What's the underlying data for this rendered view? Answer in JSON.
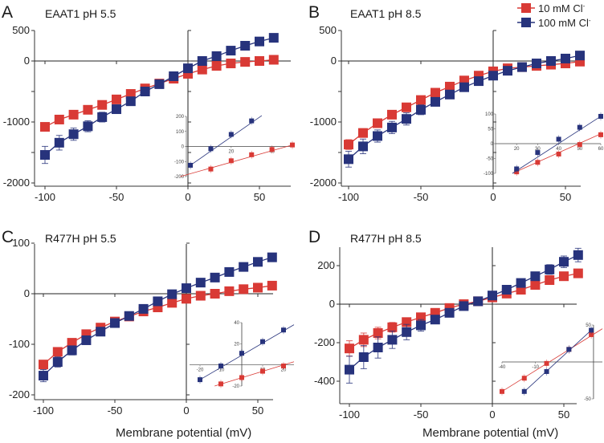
{
  "figure": {
    "xlabel": "Membrane potential (mV)",
    "legend": {
      "placement": "top-right",
      "entries": [
        {
          "label": "10 mM  Cl",
          "superscript": "-",
          "color": "#d93a35"
        },
        {
          "label": "100 mM  Cl",
          "superscript": "-",
          "color": "#27337c"
        }
      ]
    }
  },
  "chart_data": [
    {
      "type": "line",
      "panel": "A",
      "title": "EAAT1 pH 5.5",
      "xlabel": "",
      "ylabel": "",
      "xlim": [
        -105,
        60
      ],
      "ylim": [
        -2000,
        500
      ],
      "xticks": [
        -100,
        -50,
        0,
        50
      ],
      "yticks": [
        500,
        0,
        -500,
        -1000,
        -1500,
        -2000
      ],
      "ytick_labels": [
        "500",
        "0",
        "",
        "-1000",
        "",
        "-2000"
      ],
      "x": [
        -100,
        -90,
        -80,
        -70,
        -60,
        -50,
        -40,
        -30,
        -20,
        -10,
        0,
        10,
        20,
        30,
        40,
        50,
        60
      ],
      "series": [
        {
          "name": "10 mM Cl-",
          "color": "#d93a35",
          "values": [
            -1080,
            -960,
            -880,
            -800,
            -720,
            -630,
            -540,
            -450,
            -370,
            -290,
            -210,
            -140,
            -80,
            -40,
            -15,
            0,
            20
          ],
          "errors": [
            40,
            30,
            25,
            25,
            20,
            20,
            20,
            15,
            15,
            15,
            15,
            10,
            10,
            10,
            10,
            10,
            10
          ]
        },
        {
          "name": "100 mM Cl-",
          "color": "#27337c",
          "values": [
            -1540,
            -1340,
            -1200,
            -1070,
            -920,
            -790,
            -660,
            -500,
            -380,
            -250,
            -120,
            0,
            80,
            170,
            250,
            320,
            380
          ],
          "errors": [
            140,
            120,
            100,
            90,
            80,
            60,
            40,
            30,
            20,
            20,
            20,
            20,
            20,
            20,
            20,
            20,
            20
          ]
        }
      ],
      "inset": {
        "xlim": [
          -2,
          50
        ],
        "ylim": [
          -200,
          200
        ],
        "xticks": [
          20,
          40
        ],
        "yticks": [
          200,
          100,
          0,
          -100,
          -200
        ],
        "series": [
          {
            "name": "10 mM Cl-",
            "color": "#d93a35",
            "x": [
              10,
              20,
              30,
              40,
              50
            ],
            "values": [
              -150,
              -95,
              -55,
              -20,
              10
            ],
            "fit": [
              [
                -5,
                -200
              ],
              [
                50,
                10
              ]
            ]
          },
          {
            "name": "100 mM Cl-",
            "color": "#27337c",
            "x": [
              0,
              10,
              20,
              30
            ],
            "values": [
              -125,
              -15,
              80,
              170
            ],
            "fit": [
              [
                0,
                -125
              ],
              [
                35,
                205
              ]
            ]
          }
        ]
      }
    },
    {
      "type": "line",
      "panel": "B",
      "title": "EAAT1 pH 8.5",
      "xlabel": "",
      "ylabel": "",
      "xlim": [
        -105,
        60
      ],
      "ylim": [
        -2000,
        500
      ],
      "xticks": [
        -100,
        -50,
        0,
        50
      ],
      "yticks": [
        500,
        0,
        -500,
        -1000,
        -1500,
        -2000
      ],
      "ytick_labels": [
        "500",
        "0",
        "",
        "-1000",
        "",
        "-2000"
      ],
      "x": [
        -100,
        -90,
        -80,
        -70,
        -60,
        -50,
        -40,
        -30,
        -20,
        -10,
        0,
        10,
        20,
        30,
        40,
        50,
        60
      ],
      "series": [
        {
          "name": "10 mM Cl-",
          "color": "#d93a35",
          "values": [
            -1370,
            -1180,
            -1020,
            -880,
            -760,
            -640,
            -520,
            -420,
            -320,
            -240,
            -170,
            -120,
            -100,
            -80,
            -60,
            -40,
            -10
          ],
          "errors": [
            80,
            70,
            60,
            50,
            40,
            30,
            25,
            20,
            20,
            15,
            15,
            15,
            15,
            15,
            15,
            15,
            15
          ]
        },
        {
          "name": "100 mM Cl-",
          "color": "#27337c",
          "values": [
            -1610,
            -1400,
            -1230,
            -1090,
            -950,
            -800,
            -670,
            -550,
            -430,
            -330,
            -240,
            -160,
            -100,
            -40,
            0,
            40,
            90
          ],
          "errors": [
            130,
            120,
            100,
            100,
            100,
            80,
            60,
            40,
            30,
            20,
            20,
            20,
            20,
            20,
            20,
            20,
            20
          ]
        }
      ],
      "inset": {
        "xlim": [
          10,
          60
        ],
        "ylim": [
          -100,
          100
        ],
        "xticks": [
          20,
          30,
          40,
          50,
          60
        ],
        "yticks": [
          100,
          50,
          0,
          -50,
          -100
        ],
        "series": [
          {
            "name": "10 mM Cl-",
            "color": "#d93a35",
            "x": [
              20,
              30,
              40,
              50,
              60
            ],
            "values": [
              -95,
              -63,
              -35,
              -3,
              30
            ],
            "fit": [
              [
                18,
                -100
              ],
              [
                60,
                33
              ]
            ]
          },
          {
            "name": "100 mM Cl-",
            "color": "#27337c",
            "x": [
              20,
              30,
              40,
              50,
              60
            ],
            "values": [
              -85,
              -30,
              15,
              55,
              92
            ],
            "fit": [
              [
                18,
                -100
              ],
              [
                60,
                92
              ]
            ]
          }
        ]
      }
    },
    {
      "type": "line",
      "panel": "C",
      "title": "R477H pH 5.5",
      "xlabel": "Membrane potential (mV)",
      "ylabel": "",
      "xlim": [
        -105,
        60
      ],
      "ylim": [
        -200,
        100
      ],
      "xticks": [
        -100,
        -50,
        0,
        50
      ],
      "yticks": [
        100,
        0,
        -100,
        -200
      ],
      "ytick_labels": [
        "100",
        "0",
        "-100",
        "-200"
      ],
      "x": [
        -100,
        -90,
        -80,
        -70,
        -60,
        -50,
        -40,
        -30,
        -20,
        -10,
        0,
        10,
        20,
        30,
        40,
        50,
        60
      ],
      "series": [
        {
          "name": "10 mM Cl-",
          "color": "#d93a35",
          "values": [
            -140,
            -115,
            -97,
            -80,
            -67,
            -55,
            -45,
            -35,
            -27,
            -18,
            -10,
            -4,
            0,
            5,
            9,
            12,
            16
          ],
          "errors": [
            8,
            7,
            6,
            5,
            4,
            3,
            3,
            3,
            2,
            2,
            2,
            2,
            2,
            2,
            2,
            2,
            2
          ]
        },
        {
          "name": "100 mM Cl-",
          "color": "#27337c",
          "values": [
            -162,
            -135,
            -112,
            -92,
            -75,
            -58,
            -44,
            -30,
            -15,
            -1,
            11,
            22,
            32,
            43,
            53,
            63,
            72
          ],
          "errors": [
            12,
            10,
            9,
            8,
            6,
            4,
            3,
            3,
            3,
            2,
            2,
            2,
            2,
            2,
            2,
            2,
            2
          ]
        }
      ],
      "inset": {
        "xlim": [
          -25,
          25
        ],
        "ylim": [
          -20,
          40
        ],
        "xticks": [
          -20,
          -10,
          10,
          20
        ],
        "yticks": [
          40,
          20,
          -20
        ],
        "series": [
          {
            "name": "10 mM Cl-",
            "color": "#d93a35",
            "x": [
              -10,
              0,
              10,
              20
            ],
            "values": [
              -18,
              -12,
              -6,
              -1
            ],
            "fit": [
              [
                -13,
                -20
              ],
              [
                25,
                3
              ]
            ]
          },
          {
            "name": "100 mM Cl-",
            "color": "#27337c",
            "x": [
              -20,
              -10,
              0,
              10,
              20
            ],
            "values": [
              -14,
              -1,
              11,
              22,
              33
            ],
            "fit": [
              [
                -20,
                -14
              ],
              [
                25,
                38
              ]
            ]
          }
        ]
      }
    },
    {
      "type": "line",
      "panel": "D",
      "title": "R477H pH 8.5",
      "xlabel": "Membrane potential (mV)",
      "ylabel": "",
      "xlim": [
        -105,
        60
      ],
      "ylim": [
        -520,
        300
      ],
      "xticks": [
        -100,
        -50,
        0,
        50
      ],
      "yticks": [
        200,
        0,
        -200,
        -400
      ],
      "ytick_labels": [
        "200",
        "0",
        "-200",
        "-400"
      ],
      "x": [
        -100,
        -90,
        -80,
        -70,
        -60,
        -50,
        -40,
        -30,
        -20,
        -10,
        0,
        10,
        20,
        30,
        40,
        50,
        60
      ],
      "series": [
        {
          "name": "10 mM Cl-",
          "color": "#d93a35",
          "values": [
            -230,
            -185,
            -150,
            -120,
            -93,
            -68,
            -45,
            -20,
            0,
            15,
            35,
            55,
            75,
            100,
            125,
            145,
            160
          ],
          "errors": [
            40,
            35,
            30,
            25,
            20,
            15,
            10,
            10,
            8,
            8,
            8,
            8,
            8,
            8,
            8,
            8,
            8
          ]
        },
        {
          "name": "100 mM Cl-",
          "color": "#27337c",
          "values": [
            -340,
            -275,
            -225,
            -185,
            -145,
            -110,
            -80,
            -45,
            -10,
            15,
            45,
            75,
            110,
            145,
            180,
            220,
            255
          ],
          "errors": [
            70,
            60,
            55,
            45,
            40,
            30,
            20,
            15,
            10,
            10,
            10,
            15,
            15,
            20,
            25,
            30,
            35
          ]
        }
      ],
      "inset": {
        "xlim": [
          -40,
          50
        ],
        "ylim": [
          -50,
          50
        ],
        "xticks": [
          -40,
          -10
        ],
        "yticks": [
          50,
          -50
        ],
        "series": [
          {
            "name": "10 mM Cl-",
            "color": "#d93a35",
            "x": [
              -40,
              -20,
              0,
              20,
              40
            ],
            "values": [
              -40,
              -22,
              -2,
              17,
              37
            ],
            "fit": [
              [
                -40,
                -40
              ],
              [
                50,
                45
              ]
            ]
          },
          {
            "name": "100 mM Cl-",
            "color": "#27337c",
            "x": [
              -20,
              0,
              20,
              40
            ],
            "values": [
              -40,
              -13,
              17,
              43
            ],
            "fit": [
              [
                -22,
                -43
              ],
              [
                40,
                43
              ]
            ]
          }
        ]
      }
    }
  ]
}
